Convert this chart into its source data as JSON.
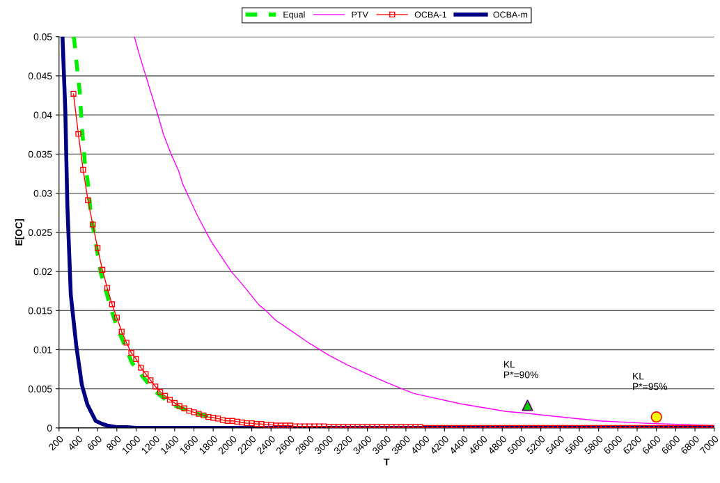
{
  "chart_data": {
    "type": "line",
    "xlabel": "T",
    "ylabel": "E[OC]",
    "xlim": [
      200,
      7000
    ],
    "xticks": [
      200,
      400,
      600,
      800,
      1000,
      1200,
      1400,
      1600,
      1800,
      2000,
      2200,
      2400,
      2600,
      2800,
      3000,
      3200,
      3400,
      3600,
      3800,
      4000,
      4200,
      4400,
      4600,
      4800,
      5000,
      5200,
      5400,
      5600,
      5800,
      6000,
      6200,
      6400,
      6600,
      6800,
      7000
    ],
    "ylim": [
      0,
      0.05
    ],
    "yticks": [
      0,
      0.005,
      0.01,
      0.015,
      0.02,
      0.025,
      0.03,
      0.035,
      0.04,
      0.045,
      0.05
    ],
    "grid": "y",
    "legend": "top",
    "series": [
      {
        "name": "Equal",
        "color": "#00ee00",
        "line_style": "dashed",
        "marker": "none",
        "x": [
          354,
          391,
          414,
          437,
          470,
          498,
          533,
          575,
          632,
          689,
          745,
          802,
          873,
          958,
          1072,
          1185,
          1298,
          1411,
          1582,
          1800
        ],
        "values": [
          0.05,
          0.0456,
          0.0431,
          0.0385,
          0.0336,
          0.0315,
          0.027,
          0.0241,
          0.0199,
          0.0174,
          0.015,
          0.0129,
          0.0108,
          0.0083,
          0.0065,
          0.0048,
          0.0037,
          0.0028,
          0.002,
          0.0013
        ]
      },
      {
        "name": "PTV",
        "color": "#ff00ff",
        "line_style": "solid",
        "marker": "none",
        "x": [
          981,
          1043,
          1228,
          1284,
          1370,
          1440,
          1483,
          1539,
          1638,
          1737,
          1781,
          1993,
          2092,
          2276,
          2347,
          2444,
          2600,
          2800,
          3000,
          3200,
          3400,
          3600,
          3800,
          3883,
          4361,
          4840,
          5034,
          5329,
          5807,
          6283,
          7000
        ],
        "values": [
          0.05,
          0.0473,
          0.0399,
          0.0375,
          0.0348,
          0.0329,
          0.0312,
          0.0297,
          0.0271,
          0.0248,
          0.0238,
          0.0199,
          0.0185,
          0.0157,
          0.015,
          0.0138,
          0.0125,
          0.0108,
          0.0093,
          0.008,
          0.0069,
          0.0058,
          0.0048,
          0.0044,
          0.0031,
          0.0021,
          0.0019,
          0.0015,
          0.0009,
          0.0006,
          0.0003
        ]
      },
      {
        "name": "OCBA-1",
        "color": "#ff0000",
        "line_style": "solid",
        "marker": "square",
        "x": [
          350,
          400,
          450,
          500,
          550,
          600,
          650,
          700,
          750,
          800,
          850,
          900,
          950,
          1000,
          1050,
          1100,
          1150,
          1200,
          1250,
          1300,
          1350,
          1400,
          1450,
          1500,
          1550,
          1600,
          1650,
          1700,
          1750,
          1800,
          1850,
          1900,
          1950,
          2000,
          2050,
          2100,
          2150,
          2200,
          2250,
          2300,
          2350,
          2400,
          2450,
          2500,
          2550,
          2600,
          2650,
          2700,
          2750,
          2800,
          2850,
          2900,
          2950,
          3000,
          3050,
          3100,
          3150,
          3200,
          3250,
          3300,
          3350,
          3400,
          3450,
          3500,
          3550,
          3600,
          3650,
          3700,
          3750,
          3800,
          3850,
          3900,
          3950,
          4000,
          4050,
          4100,
          4150,
          4200,
          4250,
          4300,
          4350,
          4400,
          4450,
          4500,
          4550,
          4600,
          4650,
          4700,
          4750,
          4800,
          4850,
          4900,
          4950,
          5000,
          5050,
          5100,
          5150,
          5200,
          5250,
          5300,
          5350,
          5400,
          5450,
          5500,
          5550,
          5600,
          5650,
          5700,
          5750,
          5800,
          5850,
          5900,
          5950,
          6000,
          6050,
          6100,
          6150,
          6200,
          6250,
          6300,
          6350,
          6400,
          6450,
          6500,
          6550,
          6600,
          6650,
          6700,
          6750,
          6800,
          6850,
          6900,
          6950,
          7000
        ],
        "values": [
          0.0427,
          0.0376,
          0.033,
          0.0291,
          0.026,
          0.023,
          0.0202,
          0.0179,
          0.0158,
          0.0141,
          0.0123,
          0.0109,
          0.0096,
          0.0088,
          0.0077,
          0.0069,
          0.0061,
          0.0053,
          0.0046,
          0.0041,
          0.0036,
          0.0032,
          0.0028,
          0.0025,
          0.0022,
          0.002,
          0.0018,
          0.0016,
          0.0014,
          0.0013,
          0.0012,
          0.001,
          0.0009,
          0.0009,
          0.0008,
          0.0007,
          0.0006,
          0.0006,
          0.0005,
          0.0005,
          0.0004,
          0.0004,
          0.0003,
          0.0003,
          0.0003,
          0.0003,
          0.0002,
          0.0002,
          0.0002,
          0.0002,
          0.0002,
          0.0002,
          0.0002,
          0.0001,
          0.0001,
          0.0001,
          0.0001,
          0.0001,
          0.0001,
          0.0001,
          0.0001,
          0.0001,
          0.0001,
          0.0001,
          0.0001,
          0.0001,
          0.0001,
          0.0001,
          0.0001,
          0.0001,
          0.0001,
          0.0001,
          0.0001,
          0,
          0,
          0,
          0,
          0,
          0,
          0,
          0,
          0,
          0,
          0,
          0,
          0,
          0,
          0,
          0,
          0,
          0,
          0,
          0,
          0,
          0,
          0,
          0,
          0,
          0,
          0,
          0,
          0,
          0,
          0,
          0,
          0,
          0,
          0,
          0,
          0,
          0,
          0,
          0,
          0,
          0,
          0,
          0,
          0,
          0,
          0,
          0,
          0,
          0,
          0,
          0,
          0,
          0,
          0,
          0,
          0,
          0,
          0,
          0,
          0
        ]
      },
      {
        "name": "OCBA-m",
        "color": "#000080",
        "line_style": "solid",
        "marker": "none",
        "x": [
          236,
          265,
          286,
          322,
          380,
          437,
          494,
          580,
          650,
          700,
          800,
          900,
          1000,
          7000
        ],
        "values": [
          0.05,
          0.0406,
          0.0286,
          0.017,
          0.0104,
          0.0055,
          0.003,
          0.0009,
          0.0005,
          0.0003,
          0.0001,
          0.0001,
          0,
          0
        ]
      },
      {
        "type": "scatter",
        "color": "#00cc00",
        "marker": "triangle",
        "x": [
          5062
        ],
        "values": [
          0.0029
        ]
      },
      {
        "type": "scatter",
        "color": "#ffff00",
        "marker": "circle",
        "x": [
          6400
        ],
        "values": [
          0.0014
        ]
      }
    ],
    "annotations": [
      "KL\nP*=90%",
      "KL\nP*=95%"
    ]
  }
}
